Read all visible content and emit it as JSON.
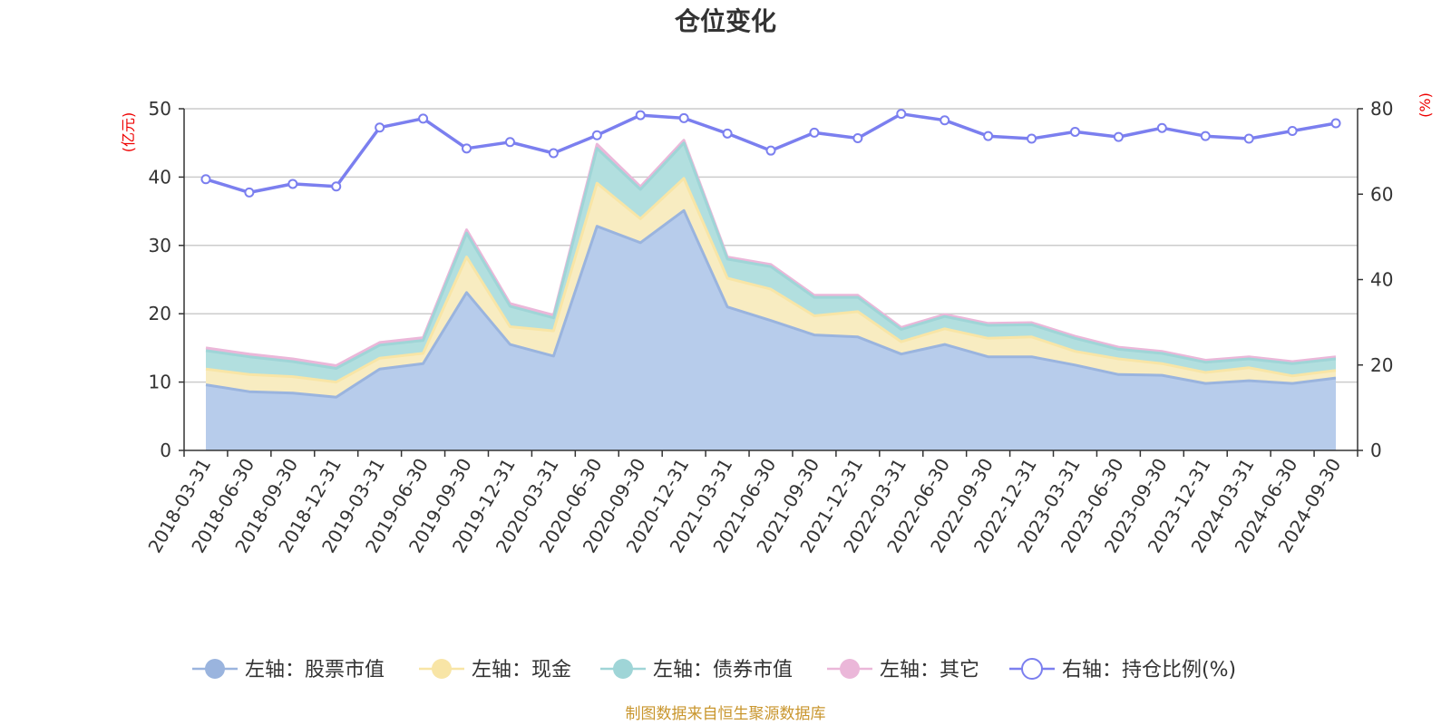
{
  "chart_data": {
    "type": "area",
    "title": "仓位变化",
    "categories": [
      "2018-03-31",
      "2018-06-30",
      "2018-09-30",
      "2018-12-31",
      "2019-03-31",
      "2019-06-30",
      "2019-09-30",
      "2019-12-31",
      "2020-03-31",
      "2020-06-30",
      "2020-09-30",
      "2020-12-31",
      "2021-03-31",
      "2021-06-30",
      "2021-09-30",
      "2021-12-31",
      "2022-03-31",
      "2022-06-30",
      "2022-09-30",
      "2022-12-31",
      "2023-03-31",
      "2023-06-30",
      "2023-09-30",
      "2023-12-31",
      "2024-03-31",
      "2024-06-30",
      "2024-09-30"
    ],
    "left_axis": {
      "unit": "(亿元)",
      "ylim": [
        0,
        50
      ],
      "ticks": [
        "0",
        "10",
        "20",
        "30",
        "40",
        "50"
      ]
    },
    "right_axis": {
      "unit": "(%)",
      "ylim": [
        0,
        80
      ],
      "ticks": [
        "0",
        "20",
        "40",
        "60",
        "80"
      ]
    },
    "series": [
      {
        "name": "左轴：股票市值",
        "axis": "left",
        "stack": true,
        "color": "#9ab4de",
        "fill": "#b7cceb",
        "values": [
          9.6,
          8.6,
          8.4,
          7.8,
          11.9,
          12.7,
          23.1,
          15.5,
          13.8,
          32.8,
          30.4,
          35.1,
          21.0,
          19.0,
          16.9,
          16.6,
          14.1,
          15.5,
          13.7,
          13.7,
          12.5,
          11.1,
          11.0,
          9.8,
          10.2,
          9.8,
          10.6
        ]
      },
      {
        "name": "左轴：现金",
        "axis": "left",
        "stack": true,
        "color": "#f8e5a6",
        "fill": "#f8ecc1",
        "values": [
          2.3,
          2.5,
          2.4,
          2.2,
          1.6,
          1.5,
          5.2,
          2.6,
          3.7,
          6.3,
          3.5,
          4.7,
          4.2,
          4.6,
          2.8,
          3.7,
          1.8,
          2.3,
          2.7,
          2.9,
          2.0,
          2.3,
          1.7,
          1.6,
          1.9,
          1.1,
          1.1
        ]
      },
      {
        "name": "左轴：债券市值",
        "axis": "left",
        "stack": true,
        "color": "#9fd5d7",
        "fill": "#b2dfdf",
        "values": [
          2.7,
          2.6,
          2.2,
          2.0,
          1.9,
          1.9,
          3.5,
          3.0,
          1.9,
          5.1,
          4.3,
          5.2,
          2.8,
          3.3,
          2.7,
          2.1,
          1.8,
          1.8,
          1.9,
          1.8,
          1.9,
          1.4,
          1.5,
          1.5,
          1.3,
          1.8,
          1.7
        ]
      },
      {
        "name": "左轴：其它",
        "axis": "left",
        "stack": true,
        "color": "#ebb7d9",
        "fill": "#ebb7d9",
        "values": [
          0.4,
          0.4,
          0.4,
          0.4,
          0.4,
          0.4,
          0.5,
          0.4,
          0.4,
          0.6,
          0.4,
          0.4,
          0.3,
          0.3,
          0.3,
          0.3,
          0.3,
          0.3,
          0.3,
          0.3,
          0.3,
          0.3,
          0.3,
          0.3,
          0.3,
          0.3,
          0.3
        ]
      },
      {
        "name": "右轴：持仓比例(%)",
        "axis": "right",
        "stack": false,
        "color": "#7b7fef",
        "fill": "#ffffff",
        "values": [
          63.5,
          60.4,
          62.4,
          61.8,
          75.6,
          77.7,
          70.7,
          72.2,
          69.6,
          73.8,
          78.5,
          77.8,
          74.2,
          70.2,
          74.4,
          73.1,
          78.8,
          77.3,
          73.6,
          73.0,
          74.6,
          73.4,
          75.5,
          73.6,
          73.0,
          74.8,
          76.6
        ]
      }
    ],
    "legend_position": "bottom-center"
  },
  "footer": {
    "source": "制图数据来自恒生聚源数据库",
    "source_color": "#c9962e"
  },
  "colors": {
    "axis": "#333333",
    "grid": "#cccccc",
    "unit_text": "#ee0000"
  }
}
